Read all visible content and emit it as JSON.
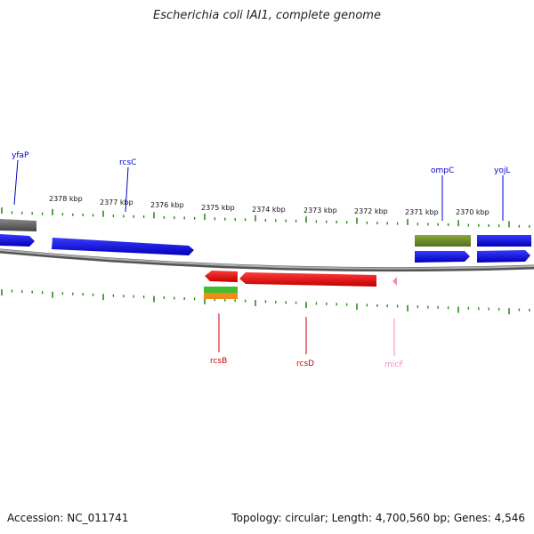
{
  "title": "Escherichia coli IAI1, complete genome",
  "footer": {
    "accession": "Accession: NC_011741",
    "summary": "Topology: circular; Length: 4,700,560 bp; Genes: 4,546"
  },
  "colors": {
    "forward_gene": "#1010e0",
    "reverse_gene": "#e01010",
    "olive_gene": "#6e8a2a",
    "mic_rna": "#f08cc0",
    "tick": "#2a8a1a",
    "backbone": "#888888",
    "grey_block": "#666666",
    "green_bar": "#44bb33",
    "orange_bar": "#f08a18"
  },
  "kbp_labels": [
    "2378 kbp",
    "2377 kbp",
    "2376 kbp",
    "2375 kbp",
    "2374 kbp",
    "2373 kbp",
    "2372 kbp",
    "2371 kbp",
    "2370 kbp"
  ],
  "genes": {
    "yfaP": "yfaP",
    "rcsC": "rcsC",
    "ompC": "ompC",
    "yojL": "yojL",
    "rcsB": "rcsB",
    "rcsD": "rcsD",
    "micF": "micF"
  }
}
